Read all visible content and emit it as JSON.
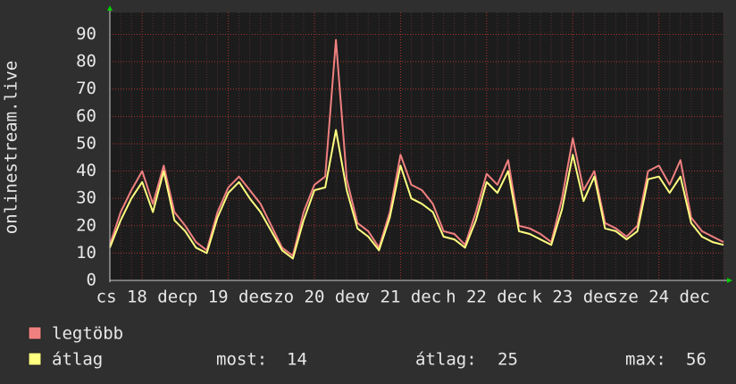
{
  "chart_data": {
    "type": "line",
    "ylabel": "onlinestream.live",
    "categories": [
      null,
      null,
      null,
      "cs 18 dec",
      null,
      null,
      null,
      null,
      null,
      null,
      null,
      "p 19 dec",
      null,
      null,
      null,
      null,
      null,
      null,
      null,
      "szo 20 dec",
      null,
      null,
      null,
      null,
      null,
      null,
      null,
      "v 21 dec",
      null,
      null,
      null,
      null,
      null,
      null,
      null,
      "h 22 dec",
      null,
      null,
      null,
      null,
      null,
      null,
      null,
      "k 23 dec",
      null,
      null,
      null,
      null,
      null,
      null,
      null,
      "sze 24 dec",
      null,
      null,
      null,
      null,
      null,
      null
    ],
    "series": [
      {
        "name": "legtöbb",
        "color": "#f08080",
        "values": [
          13,
          25,
          33,
          40,
          28,
          42,
          25,
          20,
          14,
          11,
          25,
          34,
          38,
          33,
          28,
          20,
          12,
          9,
          25,
          35,
          38,
          88,
          37,
          21,
          18,
          12,
          25,
          46,
          35,
          33,
          28,
          18,
          17,
          13,
          25,
          39,
          35,
          44,
          20,
          19,
          17,
          14,
          30,
          52,
          33,
          40,
          21,
          19,
          16,
          20,
          40,
          42,
          35,
          44,
          23,
          18,
          16,
          14
        ]
      },
      {
        "name": "átlag",
        "color": "#ffff80",
        "values": [
          12,
          22,
          30,
          36,
          25,
          40,
          22,
          18,
          12,
          10,
          23,
          32,
          36,
          30,
          25,
          18,
          11,
          8,
          22,
          33,
          34,
          55,
          33,
          19,
          16,
          11,
          23,
          42,
          30,
          28,
          25,
          16,
          15,
          12,
          22,
          36,
          32,
          40,
          18,
          17,
          15,
          13,
          26,
          46,
          29,
          38,
          19,
          18,
          15,
          18,
          37,
          38,
          32,
          38,
          21,
          16,
          14,
          13
        ]
      }
    ],
    "ylim": [
      0,
      98
    ],
    "yticks": [
      0,
      10,
      20,
      30,
      40,
      50,
      60,
      70,
      80,
      90
    ],
    "grid": true,
    "stats": [
      {
        "label": "most:",
        "value": 14
      },
      {
        "label": "átlag:",
        "value": 25
      },
      {
        "label": "max:",
        "value": 56
      }
    ]
  }
}
